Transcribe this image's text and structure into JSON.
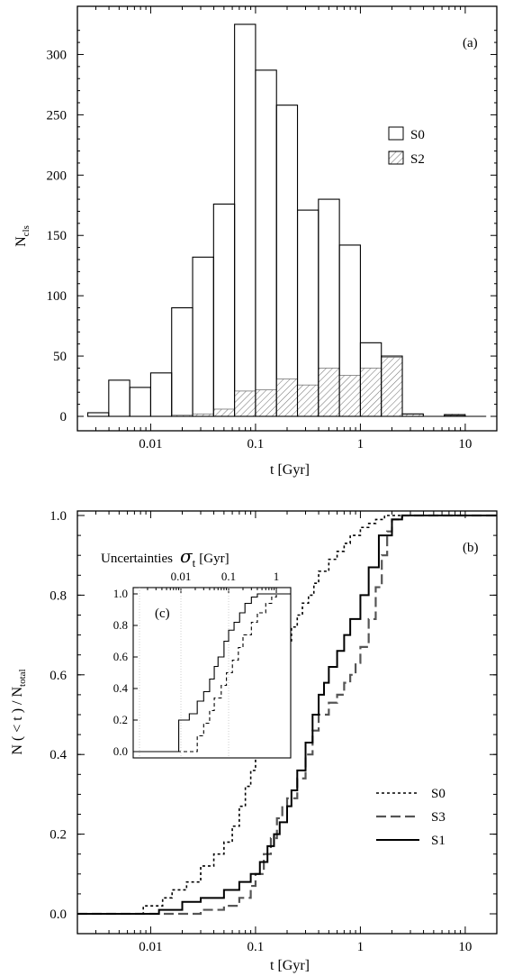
{
  "chart_data": [
    {
      "panel_label": "(a)",
      "type": "bar",
      "xlabel": "t [Gyr]",
      "ylabel_main": "N",
      "ylabel_sub": "cls",
      "x_scale": "log",
      "xlim": [
        0.002,
        20
      ],
      "ylim": [
        0,
        330
      ],
      "x_ticks": [
        {
          "v": 0.01,
          "label": "0.01"
        },
        {
          "v": 0.1,
          "label": "0.1"
        },
        {
          "v": 1,
          "label": "1"
        },
        {
          "v": 10,
          "label": "10"
        }
      ],
      "y_ticks": [
        0,
        50,
        100,
        150,
        200,
        250,
        300
      ],
      "legend_position": "right",
      "bin_edges_log10": [
        -2.6,
        -2.4,
        -2.2,
        -2.0,
        -1.8,
        -1.6,
        -1.4,
        -1.2,
        -1.0,
        -0.8,
        -0.6,
        -0.4,
        -0.2,
        0.0,
        0.2,
        0.4,
        0.6,
        0.8,
        1.0,
        1.2
      ],
      "series": [
        {
          "name": "S0",
          "style": "open",
          "values": [
            3,
            30,
            24,
            36,
            90,
            132,
            176,
            325,
            287,
            258,
            171,
            180,
            142,
            61,
            50,
            2,
            0,
            1,
            0
          ]
        },
        {
          "name": "S2",
          "style": "hatched",
          "values": [
            0,
            0,
            0,
            0,
            1,
            2,
            6,
            21,
            22,
            31,
            26,
            40,
            34,
            40,
            49,
            2,
            0,
            2,
            0
          ]
        }
      ]
    },
    {
      "panel_label": "(b)",
      "type": "line",
      "xlabel": "t [Gyr]",
      "ylabel": "N ( < t ) / N",
      "ylabel_sub": "total",
      "x_scale": "log",
      "xlim": [
        0.002,
        20
      ],
      "ylim": [
        0,
        1.02
      ],
      "x_ticks": [
        {
          "v": 0.01,
          "label": "0.01"
        },
        {
          "v": 0.1,
          "label": "0.1"
        },
        {
          "v": 1,
          "label": "1"
        },
        {
          "v": 10,
          "label": "10"
        }
      ],
      "y_ticks": [
        {
          "v": 0,
          "label": "0.0"
        },
        {
          "v": 0.2,
          "label": "0.2"
        },
        {
          "v": 0.4,
          "label": "0.4"
        },
        {
          "v": 0.6,
          "label": "0.6"
        },
        {
          "v": 0.8,
          "label": "0.8"
        },
        {
          "v": 1.0,
          "label": "1.0"
        }
      ],
      "legend_position": "bottom-right",
      "series": [
        {
          "name": "S0",
          "dash": "3,3",
          "x": [
            0.002,
            0.0085,
            0.013,
            0.016,
            0.022,
            0.03,
            0.04,
            0.05,
            0.06,
            0.07,
            0.08,
            0.09,
            0.1,
            0.11,
            0.12,
            0.13,
            0.14,
            0.16,
            0.18,
            0.2,
            0.22,
            0.25,
            0.28,
            0.32,
            0.36,
            0.4,
            0.5,
            0.6,
            0.7,
            0.8,
            1.0,
            1.2,
            1.4,
            1.7,
            2.0,
            2.5,
            20
          ],
          "y": [
            0.0,
            0.02,
            0.04,
            0.06,
            0.08,
            0.12,
            0.15,
            0.18,
            0.22,
            0.27,
            0.32,
            0.36,
            0.41,
            0.46,
            0.5,
            0.53,
            0.56,
            0.61,
            0.64,
            0.68,
            0.72,
            0.75,
            0.78,
            0.8,
            0.83,
            0.86,
            0.89,
            0.91,
            0.93,
            0.95,
            0.97,
            0.98,
            0.99,
            1.0,
            1.0,
            1.0,
            1.0
          ]
        },
        {
          "name": "S3",
          "dash": "11,5",
          "x": [
            0.002,
            0.03,
            0.05,
            0.07,
            0.09,
            0.1,
            0.12,
            0.14,
            0.16,
            0.18,
            0.2,
            0.25,
            0.3,
            0.35,
            0.4,
            0.5,
            0.6,
            0.7,
            0.8,
            0.9,
            1.0,
            1.2,
            1.4,
            1.6,
            1.8,
            2.0,
            2.5,
            20
          ],
          "y": [
            0.0,
            0.01,
            0.02,
            0.04,
            0.07,
            0.1,
            0.15,
            0.19,
            0.24,
            0.27,
            0.29,
            0.34,
            0.4,
            0.46,
            0.5,
            0.53,
            0.55,
            0.58,
            0.6,
            0.63,
            0.67,
            0.74,
            0.82,
            0.9,
            0.96,
            0.99,
            1.0,
            1.0
          ]
        },
        {
          "name": "S1",
          "dash": "",
          "x": [
            0.002,
            0.012,
            0.02,
            0.03,
            0.05,
            0.07,
            0.09,
            0.11,
            0.13,
            0.15,
            0.17,
            0.2,
            0.22,
            0.25,
            0.3,
            0.35,
            0.4,
            0.45,
            0.5,
            0.6,
            0.7,
            0.8,
            1.0,
            1.2,
            1.5,
            2.0,
            2.5,
            20
          ],
          "y": [
            0.0,
            0.01,
            0.03,
            0.04,
            0.06,
            0.08,
            0.1,
            0.13,
            0.17,
            0.2,
            0.23,
            0.27,
            0.31,
            0.36,
            0.43,
            0.5,
            0.55,
            0.58,
            0.62,
            0.66,
            0.7,
            0.74,
            0.8,
            0.87,
            0.95,
            0.99,
            1.0,
            1.0
          ]
        }
      ]
    },
    {
      "panel_label": "(c)",
      "type": "line",
      "title": "Uncertainties",
      "title_symbol": "σ",
      "title_symbol_sub": "t",
      "title_unit": "[Gyr]",
      "x_scale": "log",
      "xlim": [
        0.001,
        2
      ],
      "ylim": [
        0,
        1.02
      ],
      "x_ticks": [
        {
          "v": 0.01,
          "label": "0.01"
        },
        {
          "v": 0.1,
          "label": "0.1"
        },
        {
          "v": 1,
          "label": "1"
        }
      ],
      "y_ticks": [
        {
          "v": 0,
          "label": "0.0"
        },
        {
          "v": 0.2,
          "label": "0.2"
        },
        {
          "v": 0.4,
          "label": "0.4"
        },
        {
          "v": 0.6,
          "label": "0.6"
        },
        {
          "v": 0.8,
          "label": "0.8"
        },
        {
          "v": 1.0,
          "label": "1.0"
        }
      ],
      "series": [
        {
          "dash": "",
          "x": [
            0.001,
            0.009,
            0.015,
            0.022,
            0.03,
            0.04,
            0.05,
            0.06,
            0.08,
            0.1,
            0.13,
            0.17,
            0.22,
            0.3,
            0.4,
            2
          ],
          "y": [
            0.0,
            0.2,
            0.24,
            0.32,
            0.38,
            0.46,
            0.54,
            0.6,
            0.7,
            0.77,
            0.82,
            0.88,
            0.94,
            0.98,
            1.0,
            1.0
          ]
        },
        {
          "dash": "4,3",
          "x": [
            0.001,
            0.022,
            0.03,
            0.04,
            0.05,
            0.07,
            0.09,
            0.12,
            0.16,
            0.2,
            0.3,
            0.4,
            0.6,
            0.8,
            1.0,
            2
          ],
          "y": [
            0.0,
            0.1,
            0.18,
            0.26,
            0.34,
            0.42,
            0.5,
            0.58,
            0.66,
            0.74,
            0.82,
            0.88,
            0.94,
            0.98,
            1.0,
            1.0
          ]
        }
      ]
    }
  ]
}
